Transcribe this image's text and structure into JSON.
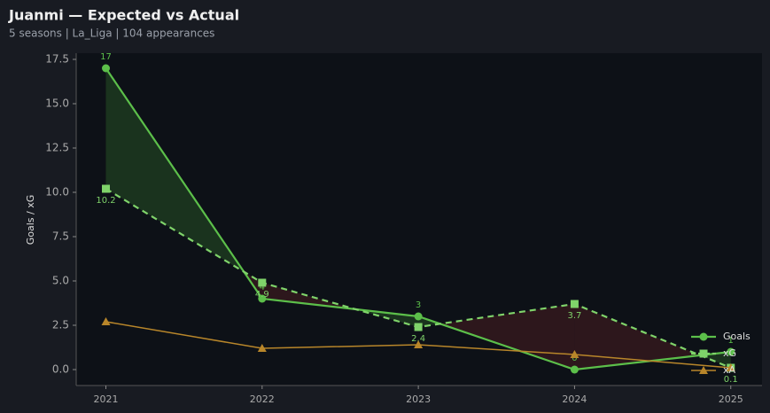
{
  "chart_data": {
    "type": "line",
    "title": "Juanmi — Expected vs Actual",
    "subtitle": "5 seasons | La_Liga | 104 appearances",
    "y_label": "Goals / xG",
    "x": [
      2021,
      2022,
      2023,
      2024,
      2025
    ],
    "xlim": [
      2020.81,
      2025.2
    ],
    "xticks": [
      2021,
      2022,
      2023,
      2024,
      2025
    ],
    "ylim": [
      -0.9,
      17.85
    ],
    "yticks": [
      {
        "value": 0,
        "label": "0.0"
      },
      2.5,
      {
        "value": 5,
        "label": "5.0"
      },
      7.5,
      {
        "value": 10,
        "label": "10.0"
      },
      12.5,
      {
        "value": 15,
        "label": "15.0"
      },
      17.5
    ],
    "legend": "lower right",
    "series": [
      {
        "name": "Goals",
        "color": "#5cbf4a",
        "values": [
          17,
          4,
          3,
          0,
          1
        ]
      },
      {
        "name": "xG",
        "color": "#7fd36a",
        "values": [
          10.2,
          4.9,
          2.4,
          3.7,
          0.1
        ]
      },
      {
        "name": "xA",
        "color": "#b8862a",
        "values": [
          2.7,
          1.2,
          1.4,
          0.85,
          0.1
        ]
      }
    ]
  }
}
